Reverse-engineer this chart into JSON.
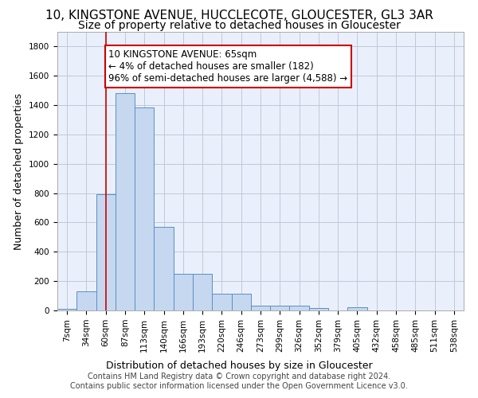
{
  "title": "10, KINGSTONE AVENUE, HUCCLECOTE, GLOUCESTER, GL3 3AR",
  "subtitle": "Size of property relative to detached houses in Gloucester",
  "xlabel": "Distribution of detached houses by size in Gloucester",
  "ylabel": "Number of detached properties",
  "bar_values": [
    10,
    130,
    795,
    1480,
    1385,
    570,
    248,
    248,
    115,
    115,
    35,
    30,
    30,
    15,
    0,
    20,
    0,
    0,
    0,
    0,
    0
  ],
  "bin_labels": [
    "7sqm",
    "34sqm",
    "60sqm",
    "87sqm",
    "113sqm",
    "140sqm",
    "166sqm",
    "193sqm",
    "220sqm",
    "246sqm",
    "273sqm",
    "299sqm",
    "326sqm",
    "352sqm",
    "379sqm",
    "405sqm",
    "432sqm",
    "458sqm",
    "485sqm",
    "511sqm",
    "538sqm"
  ],
  "bar_color": "#c5d8f0",
  "bar_edge_color": "#5b8ec4",
  "bg_color": "#eaf0fb",
  "grid_color": "#c0c8d8",
  "vline_x": 2,
  "vline_color": "#cc0000",
  "annotation_text": "10 KINGSTONE AVENUE: 65sqm\n← 4% of detached houses are smaller (182)\n96% of semi-detached houses are larger (4,588) →",
  "annotation_box_color": "#cc0000",
  "ylim": [
    0,
    1900
  ],
  "yticks": [
    0,
    200,
    400,
    600,
    800,
    1000,
    1200,
    1400,
    1600,
    1800
  ],
  "footer_text": "Contains HM Land Registry data © Crown copyright and database right 2024.\nContains public sector information licensed under the Open Government Licence v3.0.",
  "title_fontsize": 11,
  "subtitle_fontsize": 10,
  "xlabel_fontsize": 9,
  "ylabel_fontsize": 9,
  "tick_fontsize": 7.5,
  "annotation_fontsize": 8.5,
  "footer_fontsize": 7
}
